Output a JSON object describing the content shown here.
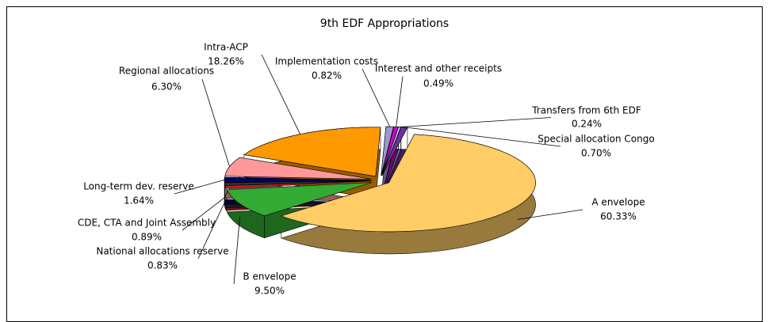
{
  "chart_data": {
    "type": "pie",
    "title": "9th EDF Appropriations",
    "categories": [
      "A envelope",
      "B envelope",
      "National allocations reserve",
      "CDE, CTA and Joint Assembly",
      "Long-term dev. reserve",
      "Regional allocations",
      "Intra-ACP",
      "Implementation costs",
      "Interest and other receipts",
      "Transfers from 6th EDF",
      "Special allocation Congo"
    ],
    "values": [
      60.33,
      9.5,
      0.83,
      0.89,
      1.64,
      6.3,
      18.26,
      0.82,
      0.49,
      0.24,
      0.7
    ],
    "value_labels": [
      "60.33%",
      "9.50%",
      "0.83%",
      "0.89%",
      "1.64%",
      "6.30%",
      "18.26%",
      "0.82%",
      "0.49%",
      "0.24%",
      "0.70%"
    ],
    "colors": [
      "#ffcc66",
      "#33aa33",
      "#cc2222",
      "#333333",
      "#000066",
      "#ff9999",
      "#ff9900",
      "#9999cc",
      "#cc00cc",
      "#ccccff",
      "#663399"
    ]
  }
}
